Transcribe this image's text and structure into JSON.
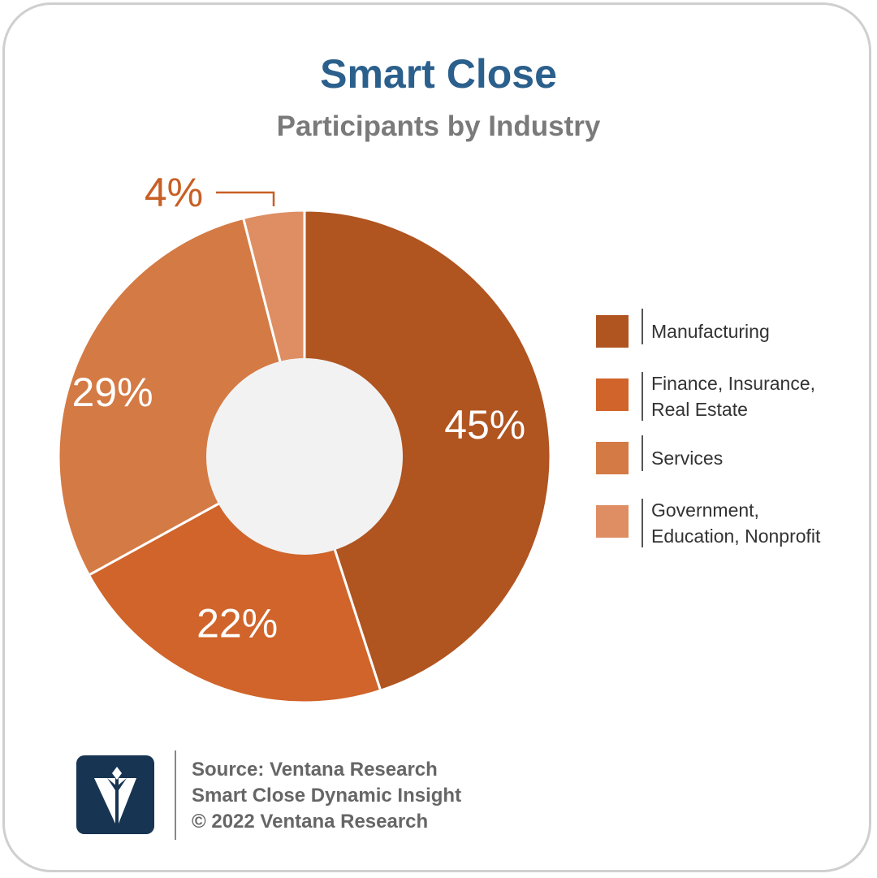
{
  "header": {
    "title": "Smart Close",
    "subtitle": "Participants by Industry"
  },
  "chart_data": {
    "type": "pie",
    "title": "Smart Close",
    "subtitle": "Participants by Industry",
    "donut": true,
    "categories": [
      "Manufacturing",
      "Finance, Insurance, Real Estate",
      "Services",
      "Government, Education, Nonprofit"
    ],
    "values": [
      45,
      22,
      29,
      4
    ],
    "data_labels": [
      "45%",
      "22%",
      "29%",
      "4%"
    ],
    "colors": [
      "#b05420",
      "#d0642a",
      "#d47a44",
      "#de8e62"
    ],
    "hole_color": "#f2f2f2",
    "label_color": "#ffffff",
    "callout_color": "#c85f25",
    "legend_position": "right"
  },
  "legend": {
    "items": [
      {
        "label": "Manufacturing",
        "color": "#b05420"
      },
      {
        "label": "Finance, Insurance,\nReal Estate",
        "color": "#d0642a"
      },
      {
        "label": "Services",
        "color": "#d47a44"
      },
      {
        "label": "Government,\nEducation, Nonprofit",
        "color": "#de8e62"
      }
    ]
  },
  "footer": {
    "logo_icon": "ventana-v-logo-icon",
    "source": "Source: Ventana Research",
    "insight": "Smart Close Dynamic Insight",
    "copyright": "© 2022 Ventana Research"
  }
}
